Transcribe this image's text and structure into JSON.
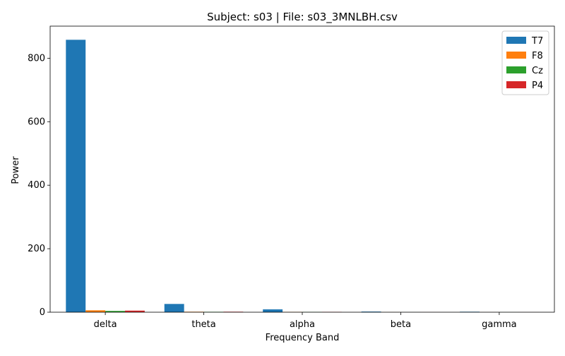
{
  "chart_data": {
    "type": "bar",
    "title": "Subject: s03 | File: s03_3MNLBH.csv",
    "xlabel": "Frequency Band",
    "ylabel": "Power",
    "categories": [
      "delta",
      "theta",
      "alpha",
      "beta",
      "gamma"
    ],
    "series": [
      {
        "name": "T7",
        "color": "#1f77b4",
        "values": [
          858,
          26,
          9,
          2,
          1.5
        ]
      },
      {
        "name": "F8",
        "color": "#ff7f0e",
        "values": [
          6,
          1.5,
          1,
          0.3,
          0.2
        ]
      },
      {
        "name": "Cz",
        "color": "#2ca02c",
        "values": [
          4,
          1.2,
          0.8,
          0.3,
          0.2
        ]
      },
      {
        "name": "P4",
        "color": "#d62728",
        "values": [
          5,
          1.5,
          1,
          0.3,
          0.2
        ]
      }
    ],
    "ylim": [
      0,
      901
    ],
    "yticks": [
      0,
      200,
      400,
      600,
      800
    ],
    "legend_position": "top-right",
    "grid": false
  }
}
